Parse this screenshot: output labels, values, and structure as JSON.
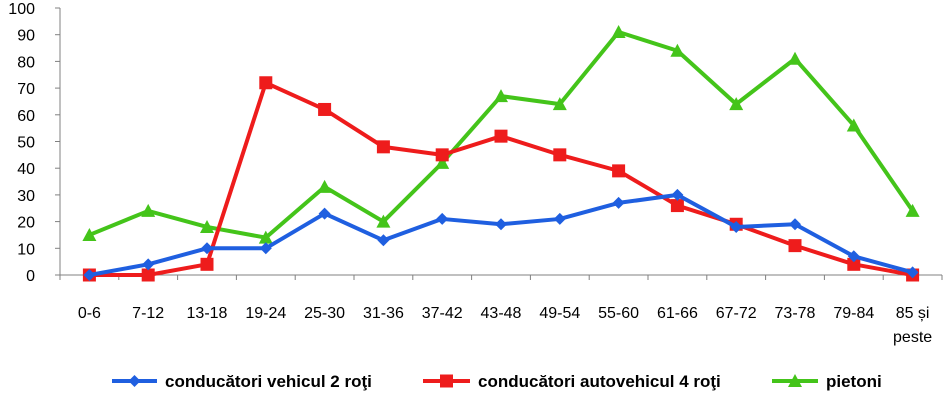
{
  "chart_data": {
    "type": "line",
    "categories": [
      "0-6",
      "7-12",
      "13-18",
      "19-24",
      "25-30",
      "31-36",
      "37-42",
      "43-48",
      "49-54",
      "55-60",
      "61-66",
      "67-72",
      "73-78",
      "79-84",
      "85 și peste"
    ],
    "ylim": [
      0,
      100
    ],
    "yticks": [
      0,
      10,
      20,
      30,
      40,
      50,
      60,
      70,
      80,
      90,
      100
    ],
    "grid": false,
    "legend_position": "bottom",
    "series": [
      {
        "name": "conducători vehicul 2 roţi",
        "color": "#1f5fe0",
        "marker": "diamond",
        "values": [
          0,
          4,
          10,
          10,
          23,
          13,
          21,
          19,
          21,
          27,
          30,
          18,
          19,
          7,
          1
        ]
      },
      {
        "name": "conducători autovehicul 4 roţi",
        "color": "#ee1c1c",
        "marker": "square",
        "values": [
          0,
          0,
          4,
          72,
          62,
          48,
          45,
          52,
          45,
          39,
          26,
          19,
          11,
          4,
          0
        ]
      },
      {
        "name": "pietoni",
        "color": "#44c41a",
        "marker": "triangle",
        "values": [
          15,
          24,
          18,
          14,
          33,
          20,
          42,
          67,
          64,
          91,
          84,
          64,
          81,
          56,
          24
        ]
      }
    ]
  }
}
